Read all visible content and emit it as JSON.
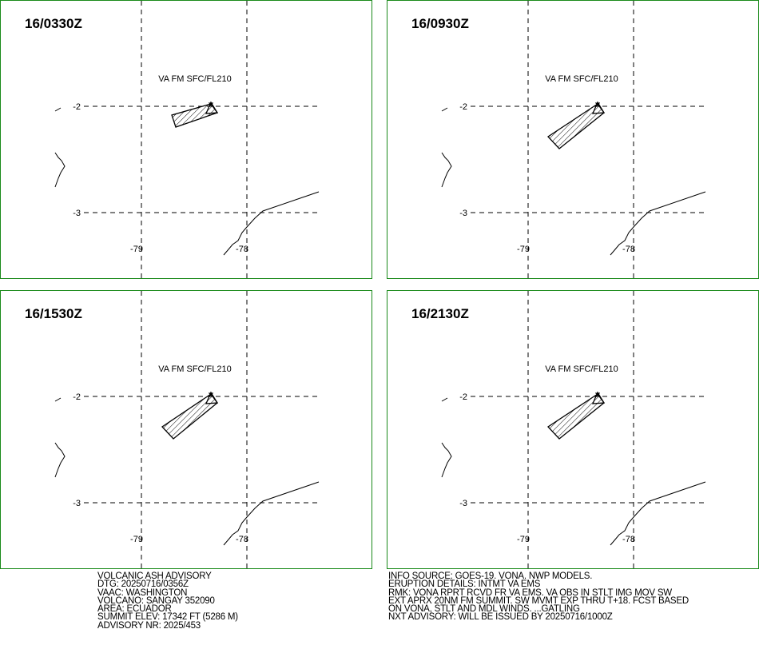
{
  "panels": [
    {
      "title": "16/0330Z",
      "label": "VA FM SFC/FL210",
      "lat_labels": [
        "-2",
        "-3"
      ],
      "lon_labels": [
        "-79",
        "-78"
      ]
    },
    {
      "title": "16/0930Z",
      "label": "VA FM SFC/FL210",
      "lat_labels": [
        "-2",
        "-3"
      ],
      "lon_labels": [
        "-79",
        "-78"
      ]
    },
    {
      "title": "16/1530Z",
      "label": "VA FM SFC/FL210",
      "lat_labels": [
        "-2",
        "-3"
      ],
      "lon_labels": [
        "-79",
        "-78"
      ]
    },
    {
      "title": "16/2130Z",
      "label": "VA FM SFC/FL210",
      "lat_labels": [
        "-2",
        "-3"
      ],
      "lon_labels": [
        "-79",
        "-78"
      ]
    }
  ],
  "advisory": {
    "left": [
      "VOLCANIC ASH ADVISORY",
      "DTG: 20250716/0356Z",
      "VAAC: WASHINGTON",
      "VOLCANO: SANGAY 352090",
      "AREA: ECUADOR",
      "SUMMIT ELEV: 17342 FT (5286 M)",
      "ADVISORY NR: 2025/453"
    ],
    "right": [
      "INFO SOURCE: GOES-19. VONA. NWP MODELS.",
      "ERUPTION DETAILS: INTMT VA EMS",
      "RMK: VONA RPRT RCVD FR VA EMS. VA OBS IN STLT IMG MOV SW",
      "EXT APRX 20NM FM SUMMIT. SW MVMT EXP THRU T+18. FCST BASED",
      "ON VONA, STLT AND MDL WINDS. ...GATLING",
      "NXT ADVISORY: WILL BE ISSUED BY 20250716/1000Z"
    ]
  }
}
